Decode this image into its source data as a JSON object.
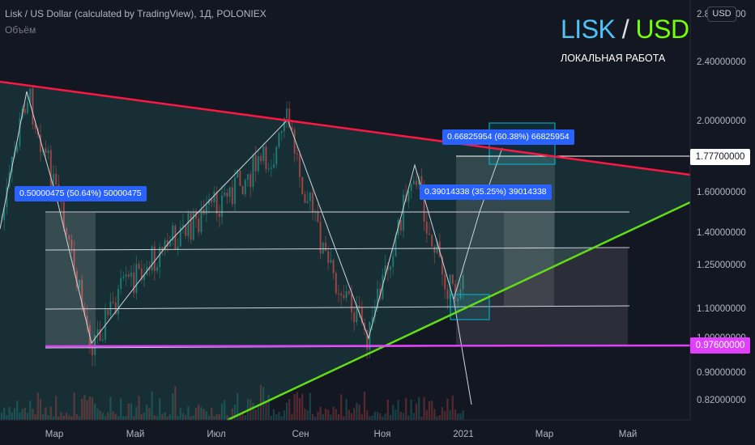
{
  "header": {
    "symbol_line": "Lisk / US Dollar (calculated by TradingView), 1Д, POLONIEX",
    "volume_label": "Объём",
    "currency_button": "USD"
  },
  "branding": {
    "pair_base": "LISK",
    "pair_slash": "/",
    "pair_quote": "USD",
    "subtitle": "ЛОКАЛЬНАЯ РАБОТА"
  },
  "measure_tags": {
    "left": "0.50000475 (50.64%) 50000475",
    "middle": "0.39014338 (35.25%) 39014338",
    "top": "0.66825954 (60.38%) 66825954"
  },
  "price_tags": {
    "resistance": "1.77700000",
    "support": "0.97600000"
  },
  "chart_data": {
    "type": "candlestick",
    "y_axis": {
      "scale": "log",
      "ticks": [
        "2.80000000",
        "2.40000000",
        "2.00000000",
        "1.77700000",
        "1.60000000",
        "1.40000000",
        "1.25000000",
        "1.10000000",
        "1.00000000",
        "0.97600000",
        "0.90000000",
        "0.82000000"
      ]
    },
    "x_axis": {
      "ticks": [
        "Мар",
        "Май",
        "Июл",
        "Сен",
        "Ноя",
        "2021",
        "Мар",
        "Май"
      ]
    },
    "levels": {
      "resistance_marker": 1.777,
      "support_line": 0.976
    },
    "trendlines": [
      {
        "name": "descending-resistance",
        "color": "#ff1744"
      },
      {
        "name": "ascending-support",
        "color": "#64dd17"
      }
    ],
    "channel_levels": [
      1.5,
      1.33,
      1.11,
      0.985
    ],
    "colors": {
      "background": "#131722",
      "resistance": "#ff1744",
      "support_up": "#64dd17",
      "support_level": "#e040fb",
      "measure_tag": "#2962ff",
      "candle_up": "#26a69a",
      "candle_down": "#ef5350"
    }
  }
}
